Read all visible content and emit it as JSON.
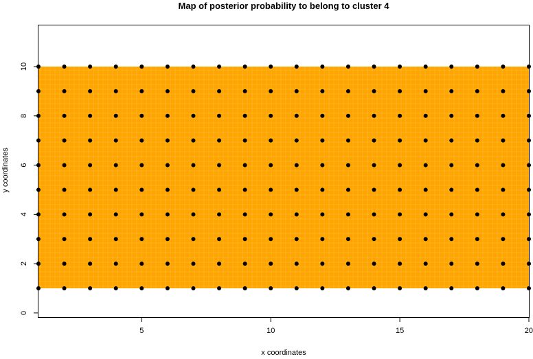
{
  "chart_data": {
    "type": "heatmap",
    "title": "Map of posterior probability to belong to cluster  4",
    "xlabel": "x coordinates",
    "ylabel": "y coordinates",
    "xlim": [
      1,
      20
    ],
    "ylim": [
      -0.17,
      11.7
    ],
    "x_ticks": [
      5,
      10,
      15,
      20
    ],
    "y_ticks": [
      0,
      2,
      4,
      6,
      8,
      10
    ],
    "fill_color": "#FFA500",
    "fill_extent": {
      "x": [
        1,
        20
      ],
      "y": [
        1,
        10
      ]
    },
    "point_color": "#000000",
    "points": {
      "x": [
        1,
        2,
        3,
        4,
        5,
        6,
        7,
        8,
        9,
        10,
        11,
        12,
        13,
        14,
        15,
        16,
        17,
        18,
        19,
        20
      ],
      "y": [
        1,
        2,
        3,
        4,
        5,
        6,
        7,
        8,
        9,
        10
      ]
    },
    "grid": false,
    "legend": "none"
  }
}
